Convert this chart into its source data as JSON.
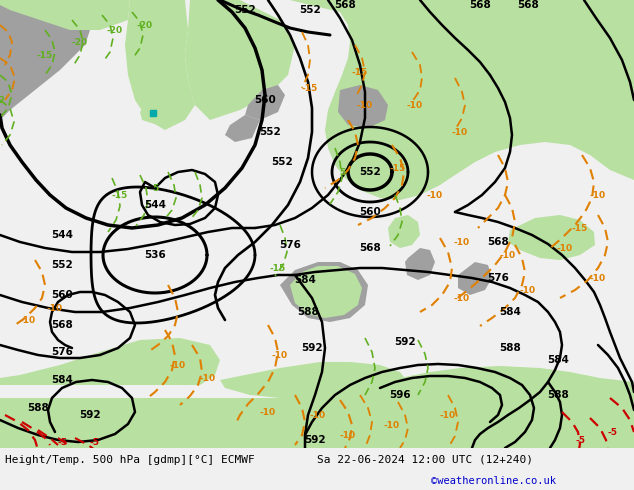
{
  "title_left": "Height/Temp. 500 hPa [gdmp][°C] ECMWF",
  "title_right": "Sa 22-06-2024 12:00 UTC (12+240)",
  "credit": "©weatheronline.co.uk",
  "bg_color": "#e0e0e0",
  "land_green": "#b8e0a0",
  "land_gray": "#a0a0a0",
  "sea_color": "#d0d0d0",
  "bottom_bar_color": "#f0f0f0",
  "credit_color": "#0000cc",
  "black": "#000000",
  "orange": "#e08000",
  "green": "#60b020",
  "red": "#cc0000",
  "cyan": "#00aaaa"
}
